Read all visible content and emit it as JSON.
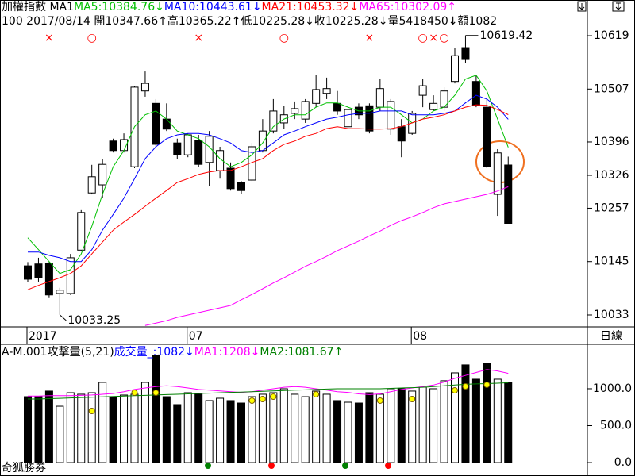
{
  "header": {
    "line1": [
      {
        "text": "加權指數 MA1",
        "color": "#000000"
      },
      {
        "text": "MA5:10384.76↓",
        "color": "#00c000"
      },
      {
        "text": "MA10:10443.61↓",
        "color": "#0000ff"
      },
      {
        "text": "MA21:10453.32↓",
        "color": "#ff0000"
      },
      {
        "text": "MA65:10302.09↑",
        "color": "#ff00ff"
      }
    ],
    "line2": [
      {
        "text": "100 2017/08/14 開10347.66↑高10365.22↑低10225.28↓收10225.28↓量5418450↓額1082",
        "color": "#000000"
      }
    ]
  },
  "footer": {
    "brand": "奇狐勝券",
    "period": "日線"
  },
  "chart_data": [
    {
      "type": "candlestick",
      "categories": [
        "2017",
        null,
        null,
        null,
        null,
        null,
        null,
        null,
        null,
        null,
        null,
        null,
        null,
        null,
        null,
        "07",
        null,
        null,
        null,
        null,
        null,
        null,
        null,
        null,
        null,
        null,
        null,
        null,
        null,
        null,
        null,
        null,
        null,
        null,
        null,
        null,
        "08",
        null,
        null,
        null,
        null,
        null,
        null,
        null,
        null,
        null
      ],
      "open": [
        10136,
        10140,
        10141,
        10078,
        10078,
        10169,
        10289,
        10306,
        10398,
        10378,
        10344,
        10503,
        10477,
        10444,
        10394,
        10369,
        10399,
        10353,
        10336,
        10341,
        10311,
        10316,
        10378,
        10419,
        10436,
        10456,
        10444,
        10477,
        10498,
        10477,
        10428,
        10469,
        10472,
        10469,
        10423,
        10428,
        10414,
        10494,
        10464,
        10469,
        10523,
        10594,
        10523,
        10469,
        10286,
        10347.66
      ],
      "high": [
        10144,
        10153,
        10144,
        10090,
        10161,
        10253,
        10348,
        10361,
        10403,
        10414,
        10514,
        10544,
        10486,
        10477,
        10403,
        10414,
        10411,
        10419,
        10386,
        10353,
        10314,
        10394,
        10444,
        10486,
        10472,
        10481,
        10486,
        10536,
        10531,
        10503,
        10469,
        10477,
        10477,
        10528,
        10486,
        10444,
        10461,
        10528,
        10494,
        10511,
        10594,
        10619.42,
        10536,
        10486,
        10381,
        10365.22
      ],
      "low": [
        10103,
        10103,
        10070,
        10033.25,
        10075,
        10168,
        10286,
        10278,
        10374,
        10374,
        10341,
        10491,
        10386,
        10419,
        10361,
        10364,
        10344,
        10303,
        10319,
        10294,
        10286,
        10314,
        10374,
        10414,
        10424,
        10444,
        10436,
        10469,
        10486,
        10453,
        10419,
        10444,
        10414,
        10461,
        10411,
        10364,
        10411,
        10469,
        10461,
        10461,
        10519,
        10561,
        10469,
        10341,
        10241,
        10225.28
      ],
      "close": [
        10108,
        10111,
        10075,
        10085,
        10153,
        10248,
        10323,
        10349,
        10378,
        10401,
        10511,
        10519,
        10391,
        10423,
        10369,
        10411,
        10349,
        10408,
        10378,
        10298,
        10294,
        10386,
        10419,
        10461,
        10453,
        10466,
        10481,
        10506,
        10508,
        10461,
        10464,
        10453,
        10419,
        10508,
        10481,
        10398,
        10456,
        10514,
        10477,
        10503,
        10577,
        10569,
        10472,
        10344,
        10373,
        10225.28
      ],
      "up_color": "#ffffff",
      "down_color": "#000000",
      "series": [
        {
          "color": "#00c000",
          "values": [
            10195,
            10170,
            10145,
            10120,
            10128,
            10161,
            10219,
            10286,
            10344,
            10378,
            10428,
            10453,
            10461,
            10444,
            10419,
            10411,
            10403,
            10386,
            10361,
            10344,
            10353,
            10369,
            10394,
            10428,
            10444,
            10453,
            10453,
            10469,
            10478,
            10478,
            10469,
            10461,
            10461,
            10469,
            10469,
            10453,
            10436,
            10444,
            10461,
            10469,
            10494,
            10528,
            10536,
            10503,
            10444,
            10384.76
          ]
        },
        {
          "color": "#0000ff",
          "values": [
            10165,
            10165,
            10158,
            10153,
            10145,
            10145,
            10170,
            10211,
            10244,
            10278,
            10319,
            10361,
            10386,
            10403,
            10411,
            10414,
            10414,
            10411,
            10403,
            10394,
            10378,
            10374,
            10378,
            10394,
            10411,
            10419,
            10428,
            10436,
            10444,
            10448,
            10453,
            10456,
            10456,
            10461,
            10461,
            10461,
            10453,
            10453,
            10453,
            10456,
            10461,
            10478,
            10494,
            10486,
            10469,
            10443.61
          ]
        },
        {
          "color": "#ff0000",
          "values": [
            10086,
            10095,
            10103,
            10111,
            10120,
            10136,
            10161,
            10186,
            10211,
            10228,
            10244,
            10261,
            10278,
            10294,
            10311,
            10319,
            10328,
            10333,
            10336,
            10336,
            10344,
            10353,
            10361,
            10378,
            10391,
            10398,
            10408,
            10414,
            10424,
            10428,
            10424,
            10424,
            10423,
            10423,
            10424,
            10428,
            10436,
            10444,
            10448,
            10453,
            10461,
            10469,
            10474,
            10473,
            10464,
            10453.32
          ]
        },
        {
          "color": "#ff00ff",
          "values": [
            null,
            null,
            null,
            null,
            null,
            null,
            null,
            null,
            null,
            null,
            null,
            10011,
            10016,
            10021,
            10028,
            10033,
            10038,
            10043,
            10048,
            10053,
            10065,
            10076,
            10088,
            10100,
            10111,
            10123,
            10135,
            10145,
            10156,
            10168,
            10178,
            10188,
            10199,
            10209,
            10221,
            10231,
            10239,
            10248,
            10258,
            10266,
            10271,
            10276,
            10281,
            10286,
            10293,
            10302.09
          ]
        }
      ],
      "markers": [
        null,
        null,
        "×",
        null,
        null,
        null,
        "○",
        null,
        null,
        null,
        null,
        null,
        null,
        null,
        null,
        null,
        "×",
        null,
        null,
        null,
        null,
        null,
        null,
        null,
        "○",
        null,
        null,
        null,
        null,
        null,
        null,
        null,
        "×",
        null,
        null,
        null,
        null,
        "○",
        "×",
        "○",
        null,
        null,
        null,
        null,
        null,
        null
      ],
      "marker_color": "#ff0000",
      "ylim": [
        10008,
        10669
      ],
      "yticks": [
        10619,
        10507,
        10396,
        10326,
        10257,
        10145,
        10033
      ]
    },
    {
      "type": "bar",
      "title_parts": [
        {
          "text": "A-M.001攻擊量(5,21)",
          "color": "#000000"
        },
        {
          "text": "成交量_:1082↓",
          "color": "#0000ff"
        },
        {
          "text": "MA1:1208↓",
          "color": "#ff00ff"
        },
        {
          "text": "MA2:1081.67↑",
          "color": "#008000"
        }
      ],
      "values": [
        892,
        892,
        968,
        763,
        946,
        925,
        946,
        1086,
        892,
        914,
        925,
        1086,
        1452,
        892,
        785,
        946,
        925,
        839,
        871,
        839,
        806,
        892,
        925,
        946,
        1000,
        925,
        892,
        968,
        925,
        839,
        817,
        806,
        946,
        925,
        1000,
        1000,
        968,
        1022,
        1000,
        1108,
        1215,
        1323,
        1129,
        1344,
        1129,
        1082
      ],
      "series": [
        {
          "color": "#ff00ff",
          "values": [
            900,
            900,
            905,
            905,
            905,
            910,
            915,
            925,
            935,
            960,
            990,
            1010,
            1030,
            1040,
            1030,
            1010,
            990,
            980,
            970,
            960,
            950,
            960,
            980,
            1000,
            1020,
            1030,
            1020,
            1000,
            980,
            960,
            950,
            930,
            920,
            930,
            960,
            990,
            1010,
            1030,
            1050,
            1090,
            1140,
            1180,
            1220,
            1260,
            1240,
            1208
          ]
        },
        {
          "color": "#008000",
          "values": [
            860,
            860,
            865,
            870,
            875,
            880,
            885,
            890,
            895,
            900,
            905,
            910,
            915,
            920,
            925,
            930,
            935,
            940,
            945,
            950,
            955,
            960,
            965,
            970,
            975,
            980,
            985,
            990,
            995,
            1000,
            1000,
            1000,
            1000,
            1000,
            1005,
            1010,
            1015,
            1020,
            1030,
            1040,
            1050,
            1060,
            1065,
            1070,
            1075,
            1081.67
          ]
        }
      ],
      "dots": {
        "color": "#ffff00",
        "values": [
          null,
          null,
          null,
          null,
          null,
          null,
          699,
          null,
          null,
          null,
          946,
          null,
          946,
          null,
          null,
          null,
          null,
          null,
          null,
          null,
          null,
          839,
          860,
          892,
          null,
          null,
          null,
          925,
          null,
          null,
          null,
          null,
          null,
          839,
          null,
          null,
          860,
          null,
          null,
          null,
          978,
          1032,
          null,
          1054,
          null,
          null
        ]
      },
      "ylim": [
        -150,
        1580
      ],
      "yticks": [
        {
          "value": 1000,
          "label": "1000.0"
        },
        {
          "value": 500,
          "label": "500.0"
        },
        {
          "value": 0,
          "label": "0.0"
        }
      ]
    }
  ]
}
